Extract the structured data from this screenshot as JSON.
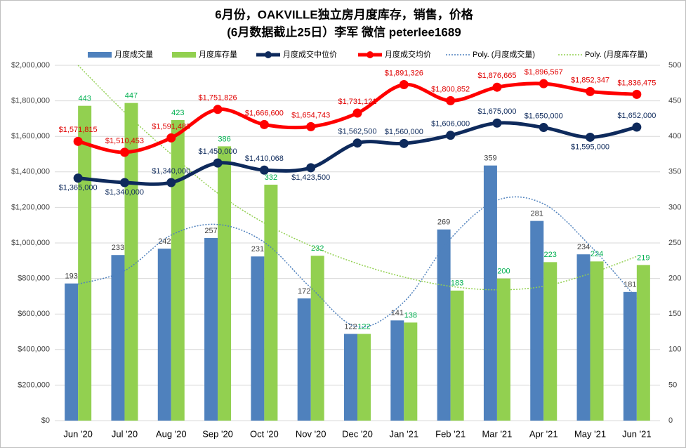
{
  "chart_data": {
    "type": "combo",
    "title": "6月份，OAKVILLE独立房月度库存，销售，价格",
    "subtitle": "(6月数据截止25日）李军  微信 peterlee1689",
    "categories": [
      "Jun '20",
      "Jul '20",
      "Aug '20",
      "Sep '20",
      "Oct '20",
      "Nov '20",
      "Dec '20",
      "Jan '21",
      "Feb '21",
      "Mar '21",
      "Apr '21",
      "May '21",
      "Jun '21"
    ],
    "series": [
      {
        "name": "月度成交量",
        "type": "bar",
        "axis": "y2",
        "color": "#4f81bd",
        "label_color": "#404040",
        "values": [
          193,
          233,
          242,
          257,
          231,
          172,
          122,
          141,
          269,
          359,
          281,
          234,
          181
        ]
      },
      {
        "name": "月度库存量",
        "type": "bar",
        "axis": "y2",
        "color": "#92d050",
        "label_color": "#00b050",
        "values": [
          443,
          447,
          423,
          386,
          332,
          232,
          122,
          138,
          183,
          200,
          223,
          224,
          219
        ]
      },
      {
        "name": "月度成交中位价",
        "type": "line",
        "color": "#0e2a5c",
        "label_color": "#0e2a5c",
        "values": [
          1365000,
          1340000,
          1340000,
          1450000,
          1410068,
          1423500,
          1562500,
          1560000,
          1606000,
          1675000,
          1650000,
          1595000,
          1652000
        ],
        "value_labels": [
          "$1,365,000",
          "$1,340,000",
          "$1,340,000",
          "$1,450,000",
          "$1,410,068",
          "$1,423,500",
          "$1,562,500",
          "$1,560,000",
          "$1,606,000",
          "$1,675,000",
          "$1,650,000",
          "$1,595,000",
          "$1,652,000"
        ]
      },
      {
        "name": "月度成交均价",
        "type": "line",
        "color": "#ff0000",
        "label_color": "#e00000",
        "values": [
          1571815,
          1510453,
          1591483,
          1751826,
          1666600,
          1654743,
          1731121,
          1891326,
          1800852,
          1876665,
          1896567,
          1852347,
          1836475
        ],
        "value_labels": [
          "$1,571,815",
          "$1,510,453",
          "$1,591,483",
          "$1,751,826",
          "$1,666,600",
          "$1,654,743",
          "$1,731,121",
          "$1,891,326",
          "$1,800,852",
          "$1,876,665",
          "$1,896,567",
          "$1,852,347",
          "$1,836,475"
        ]
      },
      {
        "name": "Poly. (月度成交量)",
        "type": "trendline",
        "axis": "y2",
        "color": "#4f81bd",
        "values": [
          192,
          211,
          261,
          276,
          251,
          187,
          132,
          167,
          256,
          310,
          305,
          246,
          172
        ]
      },
      {
        "name": "Poly. (月度库存量)",
        "type": "trendline",
        "axis": "y2",
        "color": "#92d050",
        "values": [
          500,
          434,
          375,
          320,
          278,
          246,
          221,
          202,
          189,
          184,
          189,
          207,
          231
        ]
      }
    ],
    "ylim": [
      0,
      2000000
    ],
    "yticks": [
      {
        "value": 0,
        "label": "$0"
      },
      {
        "value": 200000,
        "label": "$200,000"
      },
      {
        "value": 400000,
        "label": "$400,000"
      },
      {
        "value": 600000,
        "label": "$600,000"
      },
      {
        "value": 800000,
        "label": "$800,000"
      },
      {
        "value": 1000000,
        "label": "$1,000,000"
      },
      {
        "value": 1200000,
        "label": "$1,200,000"
      },
      {
        "value": 1400000,
        "label": "$1,400,000"
      },
      {
        "value": 1600000,
        "label": "$1,600,000"
      },
      {
        "value": 1800000,
        "label": "$1,800,000"
      },
      {
        "value": 2000000,
        "label": "$2,000,000"
      }
    ],
    "y2lim": [
      0,
      500
    ],
    "y2ticks": [
      0,
      50,
      100,
      150,
      200,
      250,
      300,
      350,
      400,
      450,
      500
    ],
    "grid": true,
    "legend": "top"
  }
}
